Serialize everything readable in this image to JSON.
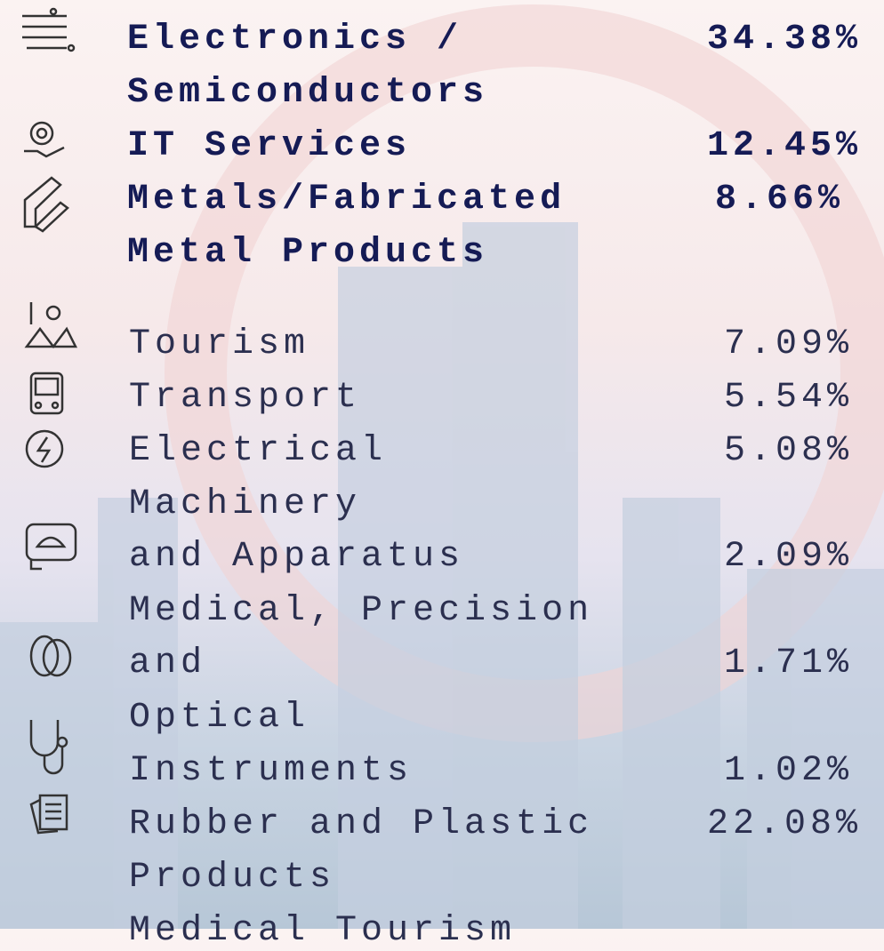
{
  "bold_lines": [
    "Electronics /",
    "Semiconductors",
    "IT Services",
    "Metals/Fabricated",
    "Metal Products"
  ],
  "bold_values": [
    "34.38%",
    "12.45%",
    "8.66%"
  ],
  "lines": [
    "Tourism",
    "Transport",
    "Electrical",
    "Machinery",
    "and Apparatus",
    "Medical, Precision",
    "and",
    "Optical",
    "Instruments",
    "Rubber and Plastic",
    "Products",
    "Medical Tourism"
  ],
  "values": [
    "7.09%",
    "5.54%",
    "5.08%",
    "2.09%",
    "1.71%",
    "1.02%",
    "22.08%"
  ]
}
